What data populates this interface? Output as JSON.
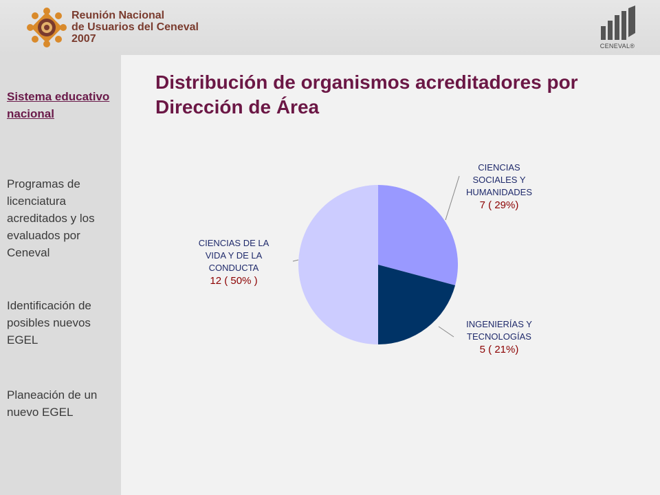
{
  "header": {
    "logo_lines": [
      "Reunión Nacional",
      "de Usuarios del Ceneval",
      "2007"
    ],
    "brand": "CENEVAL®"
  },
  "sidebar": {
    "items": [
      {
        "label": "Sistema educativo nacional",
        "active": true
      },
      {
        "label": "Programas de licenciatura acreditados y los evaluados por Ceneval",
        "active": false
      },
      {
        "label": "Identificación de posibles nuevos EGEL",
        "active": false
      },
      {
        "label": "Planeación de un nuevo EGEL",
        "active": false
      }
    ]
  },
  "chart_data": {
    "type": "pie",
    "title": "Distribución de organismos acreditadores por Dirección de Área",
    "slices": [
      {
        "name": "CIENCIAS SOCIALES Y HUMANIDADES",
        "label_lines": [
          "CIENCIAS",
          "SOCIALES Y",
          "HUMANIDADES"
        ],
        "value": 7,
        "value_label": "7 ( 29%)",
        "color": "#9999ff"
      },
      {
        "name": "INGENIERÍAS Y TECNOLOGÍAS",
        "label_lines": [
          "INGENIERÍAS Y",
          "TECNOLOGÍAS"
        ],
        "value": 5,
        "value_label": "5 ( 21%)",
        "color": "#003366"
      },
      {
        "name": "CIENCIAS DE LA VIDA Y DE LA CONDUCTA",
        "label_lines": [
          "CIENCIAS DE LA",
          "VIDA Y DE LA",
          "CONDUCTA"
        ],
        "value": 12,
        "value_label": "12 ( 50% )",
        "color": "#ccccff"
      }
    ],
    "legend": "none"
  }
}
